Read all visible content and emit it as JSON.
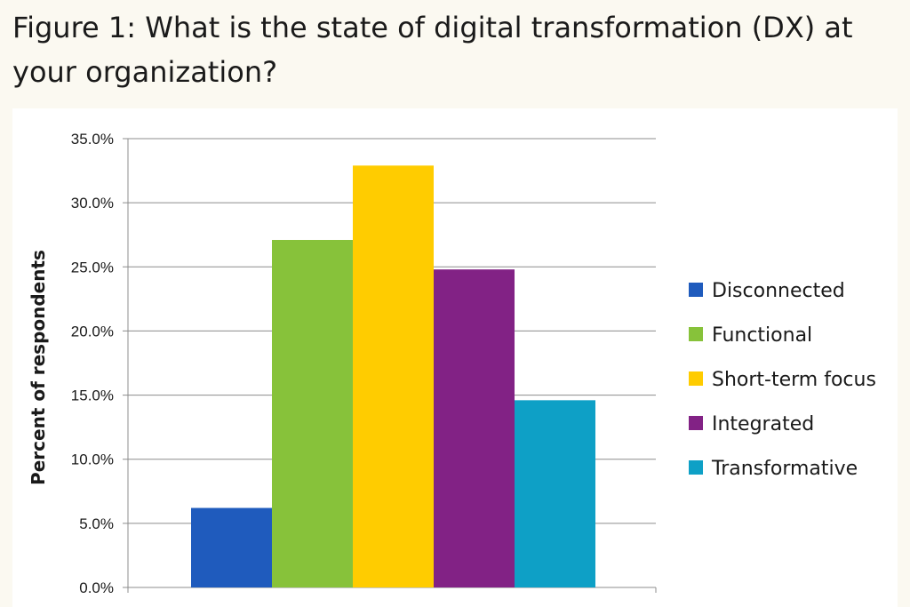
{
  "title": "Figure 1: What is the state of digital transformation (DX) at your organization?",
  "chart_data": {
    "type": "bar",
    "title": "",
    "xlabel": "",
    "ylabel": "Percent of respondents",
    "ylim": [
      0,
      35
    ],
    "yticks": [
      "0.0%",
      "5.0%",
      "10.0%",
      "15.0%",
      "20.0%",
      "25.0%",
      "30.0%",
      "35.0%"
    ],
    "grid": true,
    "legend_position": "right",
    "series": [
      {
        "name": "Disconnected",
        "value": 6.2,
        "color": "#1f5bbd"
      },
      {
        "name": "Functional",
        "value": 27.1,
        "color": "#87c23a"
      },
      {
        "name": "Short-term focus",
        "value": 32.9,
        "color": "#ffcc00"
      },
      {
        "name": "Integrated",
        "value": 24.8,
        "color": "#822285"
      },
      {
        "name": "Transformative",
        "value": 14.6,
        "color": "#0ea0c6"
      }
    ]
  }
}
